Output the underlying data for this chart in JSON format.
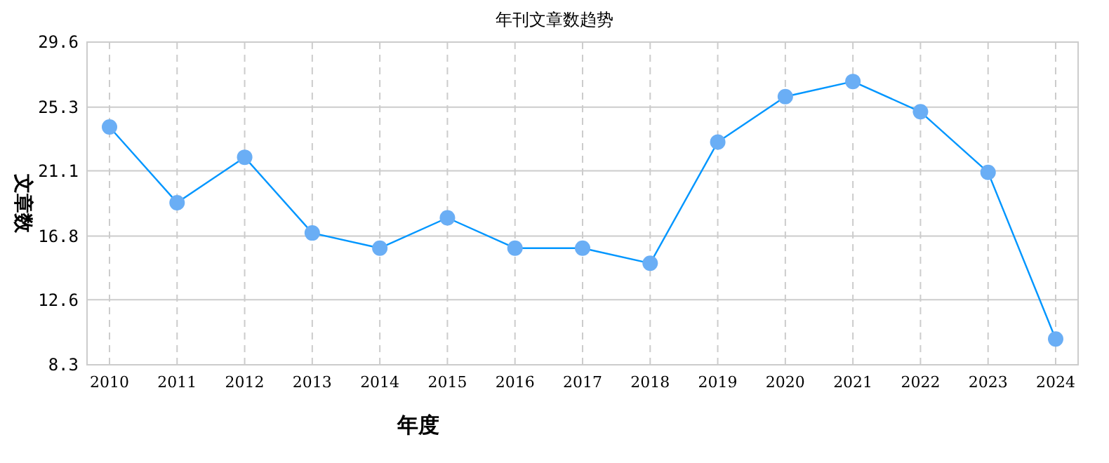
{
  "chart_data": {
    "type": "line",
    "title": "年刊文章数趋势",
    "xlabel": "年度",
    "ylabel": "文章数",
    "categories": [
      "2010",
      "2011",
      "2012",
      "2013",
      "2014",
      "2015",
      "2016",
      "2017",
      "2018",
      "2019",
      "2020",
      "2021",
      "2022",
      "2023",
      "2024"
    ],
    "series": [
      {
        "color": "#0096ff",
        "values": [
          24,
          19,
          22,
          17,
          16,
          18,
          16,
          16,
          15,
          23,
          26,
          27,
          25,
          21,
          10
        ]
      }
    ],
    "ylim": [
      8.3,
      29.6
    ],
    "yticks": [
      8.3,
      12.6,
      16.8,
      21.1,
      25.3,
      29.6
    ],
    "grid": true,
    "marker": "circle",
    "line_style": "solid"
  }
}
